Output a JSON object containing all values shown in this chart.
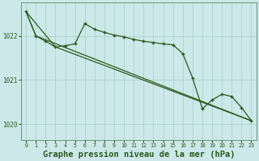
{
  "background_color": "#cce8e8",
  "grid_color": "#aacccc",
  "line_color": "#2d5a1e",
  "xlabel": "Graphe pression niveau de la mer (hPa)",
  "xlabel_fontsize": 7.5,
  "ylim": [
    1019.65,
    1022.75
  ],
  "xlim": [
    -0.5,
    23.5
  ],
  "yticks": [
    1020,
    1021,
    1022
  ],
  "xticks": [
    0,
    1,
    2,
    3,
    4,
    5,
    6,
    7,
    8,
    9,
    10,
    11,
    12,
    13,
    14,
    15,
    16,
    17,
    18,
    19,
    20,
    21,
    22,
    23
  ],
  "line1_x": [
    0,
    1,
    23
  ],
  "line1_y": [
    1022.55,
    1022.0,
    1020.08
  ],
  "line2_x": [
    0,
    3,
    23
  ],
  "line2_y": [
    1022.55,
    1021.75,
    1020.08
  ],
  "line3_x": [
    0,
    1,
    2,
    3,
    4,
    5,
    6,
    7,
    8,
    9,
    10,
    11,
    12,
    13,
    14,
    15,
    16,
    17,
    18,
    19,
    20,
    21,
    22,
    23
  ],
  "line3_y": [
    1022.55,
    1022.0,
    1021.88,
    1021.75,
    1021.78,
    1021.82,
    1022.28,
    1022.15,
    1022.08,
    1022.02,
    1021.98,
    1021.92,
    1021.88,
    1021.85,
    1021.82,
    1021.8,
    1021.6,
    1021.05,
    1020.35,
    1020.55,
    1020.68,
    1020.63,
    1020.38,
    1020.08
  ]
}
